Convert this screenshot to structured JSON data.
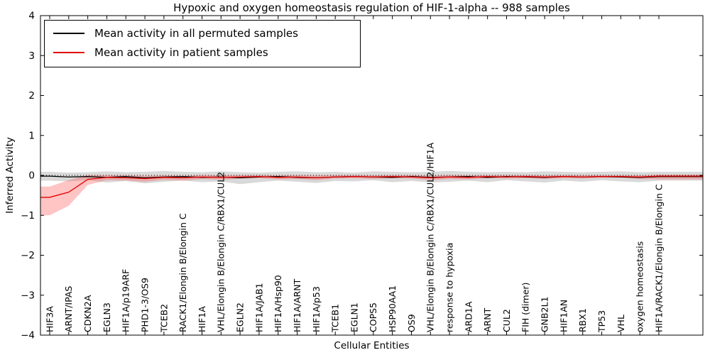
{
  "chart_data": {
    "type": "line",
    "title": "Hypoxic and oxygen homeostasis regulation of HIF-1-alpha -- 988 samples",
    "xlabel": "Cellular Entities",
    "ylabel": "Inferred Activity",
    "ylim": [
      -4,
      4
    ],
    "yticks": [
      4,
      3,
      2,
      1,
      0,
      -1,
      -2,
      -3,
      -4
    ],
    "grid": false,
    "zero_line": true,
    "legend_position": "upper left",
    "categories": [
      "HIF3A",
      "ARNT/IPAS",
      "CDKN2A",
      "EGLN3",
      "HIF1A/p19ARF",
      "PHD1-3/OS9",
      "TCEB2",
      "RACK1/Elongin B/Elongin C",
      "HIF1A",
      "VHL/Elongin B/Elongin C/RBX1/CUL2",
      "EGLN2",
      "HIF1A/JAB1",
      "HIF1A/Hsp90",
      "HIF1A/ARNT",
      "HIF1A/p53",
      "TCEB1",
      "EGLN1",
      "COPS5",
      "HSP90AA1",
      "OS9",
      "VHL/Elongin B/Elongin C/RBX1/CUL2/HIF1A",
      "response to hypoxia",
      "ARD1A",
      "ARNT",
      "CUL2",
      "FIH (dimer)",
      "GNB2L1",
      "HIF1AN",
      "RBX1",
      "TP53",
      "VHL",
      "oxygen homeostasis",
      "HIF1A/RACK1/Elongin B/Elongin C"
    ],
    "series": [
      {
        "name": "Mean activity in all permuted samples",
        "color": "#000000",
        "band_color": "#aaaaaa",
        "band_opacity": 0.45,
        "values": [
          -0.02,
          -0.04,
          -0.03,
          -0.05,
          -0.03,
          -0.06,
          -0.04,
          -0.03,
          -0.05,
          -0.04,
          -0.06,
          -0.04,
          -0.03,
          -0.05,
          -0.06,
          -0.04,
          -0.03,
          -0.04,
          -0.05,
          -0.03,
          -0.05,
          -0.04,
          -0.03,
          -0.05,
          -0.03,
          -0.04,
          -0.05,
          -0.03,
          -0.04,
          -0.03,
          -0.04,
          -0.05,
          -0.03
        ],
        "upper": [
          0.09,
          0.07,
          0.08,
          0.1,
          0.08,
          0.09,
          0.11,
          0.09,
          0.08,
          0.1,
          0.08,
          0.07,
          0.09,
          0.1,
          0.08,
          0.09,
          0.07,
          0.1,
          0.09,
          0.08,
          0.09,
          0.11,
          0.09,
          0.08,
          0.09,
          0.08,
          0.1,
          0.09,
          0.08,
          0.09,
          0.1,
          0.08,
          0.09
        ],
        "lower": [
          -0.13,
          -0.15,
          -0.12,
          -0.18,
          -0.14,
          -0.2,
          -0.16,
          -0.13,
          -0.17,
          -0.15,
          -0.22,
          -0.17,
          -0.13,
          -0.16,
          -0.19,
          -0.14,
          -0.15,
          -0.12,
          -0.17,
          -0.14,
          -0.18,
          -0.16,
          -0.13,
          -0.17,
          -0.12,
          -0.15,
          -0.18,
          -0.13,
          -0.16,
          -0.12,
          -0.15,
          -0.17,
          -0.13
        ]
      },
      {
        "name": "Mean activity in patient samples",
        "color": "#e00000",
        "band_color": "#ff5555",
        "band_opacity": 0.35,
        "values": [
          -0.55,
          -0.42,
          -0.1,
          -0.05,
          -0.06,
          -0.08,
          -0.05,
          -0.06,
          -0.04,
          -0.05,
          -0.04,
          -0.03,
          -0.05,
          -0.04,
          -0.06,
          -0.04,
          -0.03,
          -0.04,
          -0.03,
          -0.04,
          -0.06,
          -0.04,
          -0.05,
          -0.03,
          -0.04,
          -0.03,
          -0.04,
          -0.03,
          -0.04,
          -0.03,
          -0.03,
          -0.04,
          -0.02
        ],
        "upper": [
          -0.28,
          -0.12,
          0.01,
          0.01,
          0.0,
          -0.01,
          0.0,
          -0.01,
          0.01,
          0.0,
          0.01,
          0.01,
          0.0,
          0.01,
          0.0,
          0.01,
          0.01,
          0.0,
          0.01,
          0.01,
          -0.01,
          0.01,
          0.0,
          0.01,
          0.01,
          0.01,
          0.0,
          0.01,
          0.01,
          0.01,
          0.01,
          0.0,
          0.02
        ],
        "lower": [
          -1.0,
          -0.76,
          -0.24,
          -0.12,
          -0.13,
          -0.16,
          -0.11,
          -0.13,
          -0.09,
          -0.11,
          -0.08,
          -0.07,
          -0.1,
          -0.09,
          -0.12,
          -0.08,
          -0.07,
          -0.09,
          -0.07,
          -0.08,
          -0.12,
          -0.09,
          -0.1,
          -0.07,
          -0.08,
          -0.07,
          -0.09,
          -0.07,
          -0.08,
          -0.06,
          -0.06,
          -0.09,
          -0.1
        ]
      }
    ]
  }
}
